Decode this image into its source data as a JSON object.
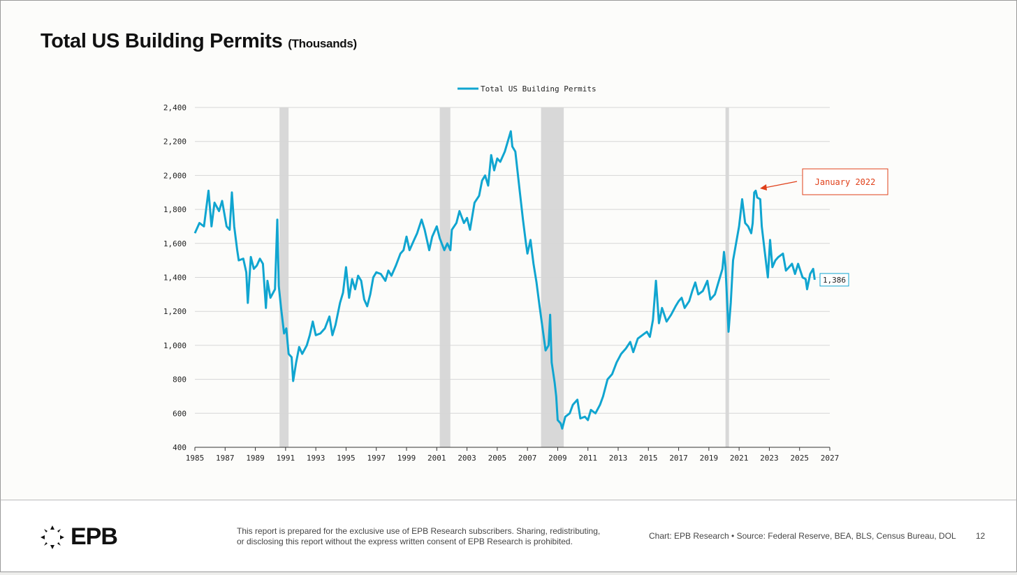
{
  "header": {
    "title": "Total US Building Permits",
    "subtitle": "(Thousands)"
  },
  "footer": {
    "logo": "EPB",
    "disclaimer_line1": "This report is prepared for the exclusive use of EPB Research subscribers. Sharing, redistributing,",
    "disclaimer_line2": "or disclosing this report without the express written consent of EPB Research is prohibited.",
    "source": "Chart: EPB Research  •  Source: Federal Reserve, BEA, BLS, Census Bureau, DOL",
    "page": "12"
  },
  "chart_data": {
    "type": "line",
    "title": "Total US Building Permits (Thousands)",
    "legend": [
      "Total US Building Permits"
    ],
    "legend_position": "top-center",
    "xlim": [
      1985,
      2027
    ],
    "ylim": [
      400,
      2400
    ],
    "x_ticks": [
      1985,
      1987,
      1989,
      1991,
      1993,
      1995,
      1997,
      1999,
      2001,
      2003,
      2005,
      2007,
      2009,
      2011,
      2013,
      2015,
      2017,
      2019,
      2021,
      2023,
      2025,
      2027
    ],
    "y_ticks": [
      400,
      600,
      800,
      1000,
      1200,
      1400,
      1600,
      1800,
      2000,
      2200,
      2400
    ],
    "y_tick_labels": [
      "400",
      "600",
      "800",
      "1,000",
      "1,200",
      "1,400",
      "1,600",
      "1,800",
      "2,000",
      "2,200",
      "2,400"
    ],
    "grid": "horizontal",
    "colors": {
      "line": "#10a5d0",
      "recession": "#d8d8d8",
      "annotation": "#e0401a"
    },
    "recessions": [
      [
        1990.6,
        1991.2
      ],
      [
        2001.2,
        2001.9
      ],
      [
        2007.9,
        2009.4
      ],
      [
        2020.1,
        2020.3
      ]
    ],
    "annotation": {
      "text": "January 2022",
      "x": 2022.0,
      "y": 1910
    },
    "last_value_label": "1,386",
    "series": [
      {
        "name": "Total US Building Permits",
        "points": [
          [
            1985.0,
            1660
          ],
          [
            1985.3,
            1720
          ],
          [
            1985.6,
            1700
          ],
          [
            1985.9,
            1910
          ],
          [
            1986.1,
            1700
          ],
          [
            1986.3,
            1840
          ],
          [
            1986.6,
            1790
          ],
          [
            1986.8,
            1850
          ],
          [
            1987.1,
            1700
          ],
          [
            1987.3,
            1680
          ],
          [
            1987.45,
            1900
          ],
          [
            1987.6,
            1700
          ],
          [
            1987.8,
            1560
          ],
          [
            1987.9,
            1500
          ],
          [
            1988.2,
            1510
          ],
          [
            1988.4,
            1430
          ],
          [
            1988.5,
            1250
          ],
          [
            1988.7,
            1520
          ],
          [
            1988.9,
            1450
          ],
          [
            1989.1,
            1470
          ],
          [
            1989.3,
            1510
          ],
          [
            1989.5,
            1480
          ],
          [
            1989.7,
            1220
          ],
          [
            1989.8,
            1380
          ],
          [
            1990.0,
            1280
          ],
          [
            1990.3,
            1330
          ],
          [
            1990.45,
            1740
          ],
          [
            1990.55,
            1350
          ],
          [
            1990.7,
            1220
          ],
          [
            1990.9,
            1070
          ],
          [
            1991.05,
            1100
          ],
          [
            1991.2,
            950
          ],
          [
            1991.4,
            930
          ],
          [
            1991.5,
            790
          ],
          [
            1991.7,
            900
          ],
          [
            1991.9,
            990
          ],
          [
            1992.1,
            950
          ],
          [
            1992.4,
            1000
          ],
          [
            1992.6,
            1060
          ],
          [
            1992.8,
            1140
          ],
          [
            1993.0,
            1060
          ],
          [
            1993.3,
            1070
          ],
          [
            1993.6,
            1100
          ],
          [
            1993.9,
            1170
          ],
          [
            1994.1,
            1060
          ],
          [
            1994.3,
            1120
          ],
          [
            1994.6,
            1250
          ],
          [
            1994.8,
            1310
          ],
          [
            1995.0,
            1460
          ],
          [
            1995.2,
            1280
          ],
          [
            1995.4,
            1390
          ],
          [
            1995.6,
            1330
          ],
          [
            1995.8,
            1410
          ],
          [
            1996.0,
            1380
          ],
          [
            1996.2,
            1270
          ],
          [
            1996.4,
            1230
          ],
          [
            1996.6,
            1300
          ],
          [
            1996.8,
            1400
          ],
          [
            1997.0,
            1430
          ],
          [
            1997.3,
            1420
          ],
          [
            1997.6,
            1380
          ],
          [
            1997.8,
            1440
          ],
          [
            1998.0,
            1410
          ],
          [
            1998.3,
            1470
          ],
          [
            1998.6,
            1540
          ],
          [
            1998.8,
            1560
          ],
          [
            1999.0,
            1640
          ],
          [
            1999.2,
            1560
          ],
          [
            1999.5,
            1620
          ],
          [
            1999.7,
            1660
          ],
          [
            2000.0,
            1740
          ],
          [
            2000.2,
            1680
          ],
          [
            2000.5,
            1560
          ],
          [
            2000.7,
            1640
          ],
          [
            2001.0,
            1700
          ],
          [
            2001.2,
            1630
          ],
          [
            2001.5,
            1560
          ],
          [
            2001.7,
            1600
          ],
          [
            2001.9,
            1560
          ],
          [
            2002.0,
            1680
          ],
          [
            2002.3,
            1720
          ],
          [
            2002.5,
            1790
          ],
          [
            2002.8,
            1720
          ],
          [
            2003.0,
            1750
          ],
          [
            2003.2,
            1680
          ],
          [
            2003.5,
            1840
          ],
          [
            2003.8,
            1880
          ],
          [
            2004.0,
            1970
          ],
          [
            2004.2,
            2000
          ],
          [
            2004.4,
            1940
          ],
          [
            2004.6,
            2120
          ],
          [
            2004.8,
            2030
          ],
          [
            2005.0,
            2100
          ],
          [
            2005.2,
            2080
          ],
          [
            2005.5,
            2140
          ],
          [
            2005.7,
            2200
          ],
          [
            2005.9,
            2260
          ],
          [
            2006.0,
            2170
          ],
          [
            2006.2,
            2140
          ],
          [
            2006.5,
            1900
          ],
          [
            2006.7,
            1740
          ],
          [
            2006.9,
            1600
          ],
          [
            2007.0,
            1540
          ],
          [
            2007.2,
            1620
          ],
          [
            2007.4,
            1480
          ],
          [
            2007.6,
            1370
          ],
          [
            2007.8,
            1230
          ],
          [
            2008.0,
            1100
          ],
          [
            2008.2,
            970
          ],
          [
            2008.4,
            1000
          ],
          [
            2008.5,
            1180
          ],
          [
            2008.6,
            900
          ],
          [
            2008.8,
            780
          ],
          [
            2008.9,
            700
          ],
          [
            2009.0,
            560
          ],
          [
            2009.2,
            540
          ],
          [
            2009.3,
            510
          ],
          [
            2009.5,
            580
          ],
          [
            2009.8,
            600
          ],
          [
            2010.0,
            650
          ],
          [
            2010.3,
            680
          ],
          [
            2010.5,
            570
          ],
          [
            2010.8,
            580
          ],
          [
            2011.0,
            560
          ],
          [
            2011.2,
            620
          ],
          [
            2011.5,
            600
          ],
          [
            2011.8,
            650
          ],
          [
            2012.0,
            700
          ],
          [
            2012.3,
            800
          ],
          [
            2012.6,
            830
          ],
          [
            2012.9,
            900
          ],
          [
            2013.2,
            950
          ],
          [
            2013.5,
            980
          ],
          [
            2013.8,
            1020
          ],
          [
            2014.0,
            960
          ],
          [
            2014.3,
            1040
          ],
          [
            2014.6,
            1060
          ],
          [
            2014.9,
            1080
          ],
          [
            2015.1,
            1050
          ],
          [
            2015.3,
            1150
          ],
          [
            2015.5,
            1380
          ],
          [
            2015.7,
            1130
          ],
          [
            2015.9,
            1220
          ],
          [
            2016.2,
            1140
          ],
          [
            2016.5,
            1180
          ],
          [
            2016.8,
            1230
          ],
          [
            2017.0,
            1260
          ],
          [
            2017.2,
            1280
          ],
          [
            2017.4,
            1220
          ],
          [
            2017.7,
            1260
          ],
          [
            2017.9,
            1320
          ],
          [
            2018.1,
            1370
          ],
          [
            2018.3,
            1300
          ],
          [
            2018.6,
            1320
          ],
          [
            2018.9,
            1380
          ],
          [
            2019.1,
            1270
          ],
          [
            2019.4,
            1300
          ],
          [
            2019.6,
            1360
          ],
          [
            2019.9,
            1450
          ],
          [
            2020.0,
            1550
          ],
          [
            2020.1,
            1460
          ],
          [
            2020.3,
            1080
          ],
          [
            2020.45,
            1250
          ],
          [
            2020.6,
            1500
          ],
          [
            2020.8,
            1600
          ],
          [
            2021.0,
            1700
          ],
          [
            2021.2,
            1860
          ],
          [
            2021.4,
            1720
          ],
          [
            2021.6,
            1700
          ],
          [
            2021.8,
            1660
          ],
          [
            2021.9,
            1720
          ],
          [
            2022.0,
            1900
          ],
          [
            2022.1,
            1910
          ],
          [
            2022.2,
            1870
          ],
          [
            2022.4,
            1860
          ],
          [
            2022.5,
            1700
          ],
          [
            2022.7,
            1550
          ],
          [
            2022.9,
            1400
          ],
          [
            2023.05,
            1620
          ],
          [
            2023.2,
            1460
          ],
          [
            2023.4,
            1500
          ],
          [
            2023.6,
            1520
          ],
          [
            2023.9,
            1540
          ],
          [
            2024.1,
            1440
          ],
          [
            2024.3,
            1460
          ],
          [
            2024.5,
            1480
          ],
          [
            2024.7,
            1420
          ],
          [
            2024.9,
            1480
          ],
          [
            2025.2,
            1400
          ],
          [
            2025.4,
            1390
          ],
          [
            2025.5,
            1330
          ],
          [
            2025.7,
            1420
          ],
          [
            2025.9,
            1450
          ],
          [
            2026.0,
            1386
          ]
        ]
      }
    ]
  }
}
